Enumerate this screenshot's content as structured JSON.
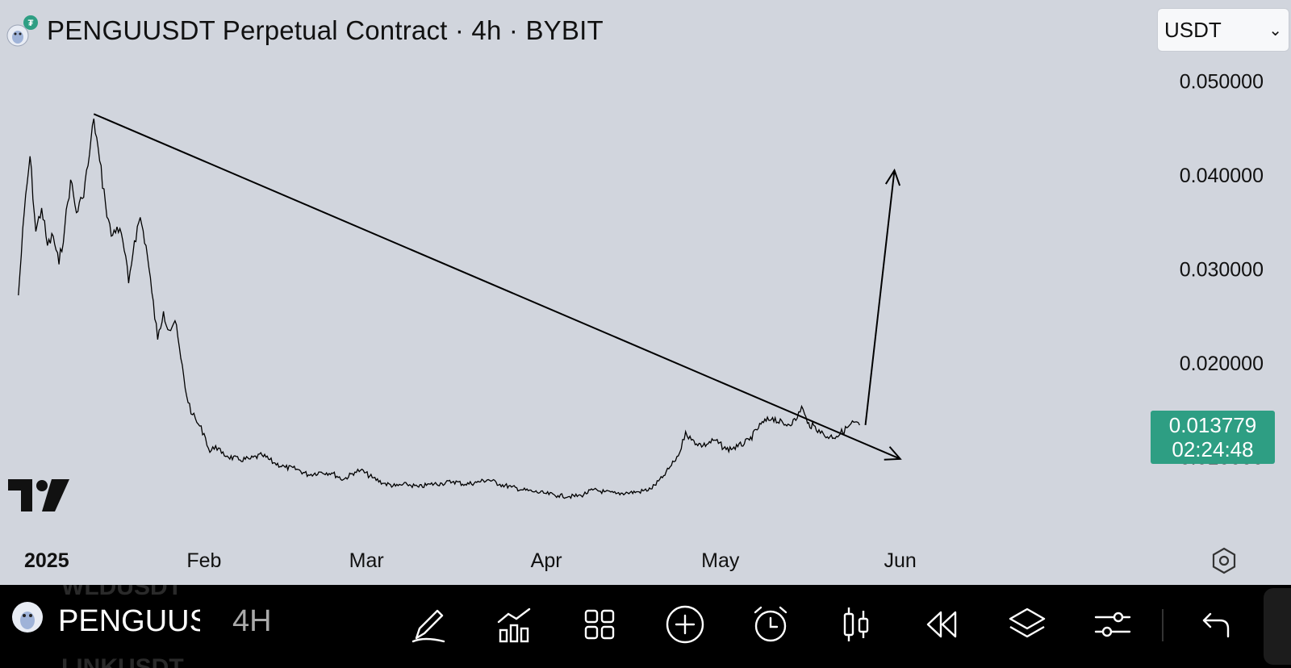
{
  "header": {
    "title": "PENGUUSDT Perpetual Contract · 4h · BYBIT",
    "currency": "USDT"
  },
  "price_badge": {
    "price": "0.013779",
    "countdown": "02:24:48"
  },
  "toolbar": {
    "symbol": "PENGUUS",
    "timeframe": "4H",
    "ghost_above": "WLDUSDT",
    "ghost_below": "LINKUSDT",
    "icons": [
      "draw-icon",
      "indicators-icon",
      "layout-grid-icon",
      "add-icon",
      "alert-icon",
      "candle-type-icon",
      "replay-icon",
      "layers-icon",
      "settings-sliders-icon",
      "undo-icon"
    ]
  },
  "colors": {
    "background": "#d1d5dd",
    "price_badge": "#2e9e83",
    "line": "#000000",
    "toolbar": "#000000"
  },
  "chart_data": {
    "type": "line",
    "title": "PENGUUSDT Perpetual Contract · 4h · BYBIT",
    "xlabel": "",
    "ylabel": "",
    "x_ticks": [
      "2025",
      "Feb",
      "Mar",
      "Apr",
      "May",
      "Jun"
    ],
    "y_ticks": [
      "0.050000",
      "0.040000",
      "0.030000",
      "0.020000",
      "0.010000"
    ],
    "ylim": [
      0.004,
      0.056
    ],
    "grid": false,
    "series": [
      {
        "values": [
          [
            "2024-12-31",
            0.0272
          ],
          [
            "2025-01-01",
            0.036
          ],
          [
            "2025-01-02",
            0.042
          ],
          [
            "2025-01-03",
            0.034
          ],
          [
            "2025-01-04",
            0.0365
          ],
          [
            "2025-01-05",
            0.0325
          ],
          [
            "2025-01-06",
            0.0335
          ],
          [
            "2025-01-07",
            0.0305
          ],
          [
            "2025-01-08",
            0.0345
          ],
          [
            "2025-01-09",
            0.0395
          ],
          [
            "2025-01-10",
            0.036
          ],
          [
            "2025-01-11",
            0.0375
          ],
          [
            "2025-01-12",
            0.041
          ],
          [
            "2025-01-13",
            0.046
          ],
          [
            "2025-01-14",
            0.0415
          ],
          [
            "2025-01-15",
            0.037
          ],
          [
            "2025-01-16",
            0.0335
          ],
          [
            "2025-01-17",
            0.0345
          ],
          [
            "2025-01-18",
            0.033
          ],
          [
            "2025-01-19",
            0.0285
          ],
          [
            "2025-01-20",
            0.033
          ],
          [
            "2025-01-21",
            0.0355
          ],
          [
            "2025-01-22",
            0.0325
          ],
          [
            "2025-01-23",
            0.0275
          ],
          [
            "2025-01-24",
            0.0225
          ],
          [
            "2025-01-25",
            0.0255
          ],
          [
            "2025-01-26",
            0.0235
          ],
          [
            "2025-01-27",
            0.0245
          ],
          [
            "2025-01-28",
            0.0205
          ],
          [
            "2025-01-29",
            0.0165
          ],
          [
            "2025-01-30",
            0.0145
          ],
          [
            "2025-01-31",
            0.0135
          ],
          [
            "2025-02-01",
            0.0125
          ],
          [
            "2025-02-02",
            0.0105
          ],
          [
            "2025-02-03",
            0.0112
          ],
          [
            "2025-02-04",
            0.0104
          ],
          [
            "2025-02-05",
            0.0101
          ],
          [
            "2025-02-07",
            0.0097
          ],
          [
            "2025-02-09",
            0.0098
          ],
          [
            "2025-02-11",
            0.0102
          ],
          [
            "2025-02-13",
            0.0094
          ],
          [
            "2025-02-15",
            0.0089
          ],
          [
            "2025-02-17",
            0.0087
          ],
          [
            "2025-02-19",
            0.0081
          ],
          [
            "2025-02-21",
            0.0084
          ],
          [
            "2025-02-23",
            0.0083
          ],
          [
            "2025-02-25",
            0.0076
          ],
          [
            "2025-02-27",
            0.0084
          ],
          [
            "2025-02-28",
            0.0086
          ],
          [
            "2025-03-02",
            0.0078
          ],
          [
            "2025-03-04",
            0.0072
          ],
          [
            "2025-03-06",
            0.0069
          ],
          [
            "2025-03-08",
            0.0071
          ],
          [
            "2025-03-10",
            0.0068
          ],
          [
            "2025-03-12",
            0.0071
          ],
          [
            "2025-03-14",
            0.0072
          ],
          [
            "2025-03-16",
            0.0074
          ],
          [
            "2025-03-18",
            0.0071
          ],
          [
            "2025-03-20",
            0.0073
          ],
          [
            "2025-03-22",
            0.0076
          ],
          [
            "2025-03-24",
            0.0071
          ],
          [
            "2025-03-26",
            0.0068
          ],
          [
            "2025-03-28",
            0.0065
          ],
          [
            "2025-03-30",
            0.0063
          ],
          [
            "2025-04-01",
            0.0061
          ],
          [
            "2025-04-03",
            0.0059
          ],
          [
            "2025-04-05",
            0.0058
          ],
          [
            "2025-04-07",
            0.0059
          ],
          [
            "2025-04-09",
            0.0065
          ],
          [
            "2025-04-11",
            0.0063
          ],
          [
            "2025-04-13",
            0.0061
          ],
          [
            "2025-04-15",
            0.0062
          ],
          [
            "2025-04-17",
            0.0063
          ],
          [
            "2025-04-19",
            0.0066
          ],
          [
            "2025-04-21",
            0.0078
          ],
          [
            "2025-04-23",
            0.0095
          ],
          [
            "2025-04-24",
            0.0105
          ],
          [
            "2025-04-25",
            0.0127
          ],
          [
            "2025-04-26",
            0.0118
          ],
          [
            "2025-04-28",
            0.0112
          ],
          [
            "2025-04-30",
            0.0118
          ],
          [
            "2025-05-02",
            0.0108
          ],
          [
            "2025-05-04",
            0.0111
          ],
          [
            "2025-05-06",
            0.0118
          ],
          [
            "2025-05-08",
            0.0135
          ],
          [
            "2025-05-10",
            0.0142
          ],
          [
            "2025-05-12",
            0.0134
          ],
          [
            "2025-05-14",
            0.0139
          ],
          [
            "2025-05-15",
            0.0154
          ],
          [
            "2025-05-16",
            0.0136
          ],
          [
            "2025-05-18",
            0.0129
          ],
          [
            "2025-05-19",
            0.0122
          ],
          [
            "2025-05-21",
            0.0122
          ],
          [
            "2025-05-23",
            0.0132
          ],
          [
            "2025-05-24",
            0.0137
          ],
          [
            "2025-05-25",
            0.0134
          ]
        ]
      }
    ],
    "current_price": 0.013779,
    "annotations": [
      {
        "type": "trendline",
        "from": [
          "2025-01-13",
          0.0465
        ],
        "to": [
          "2025-06-01",
          0.0098
        ],
        "arrow": true
      },
      {
        "type": "arrow",
        "from": [
          "2025-05-26",
          0.0134
        ],
        "to": [
          "2025-05-31",
          0.0405
        ]
      }
    ]
  }
}
